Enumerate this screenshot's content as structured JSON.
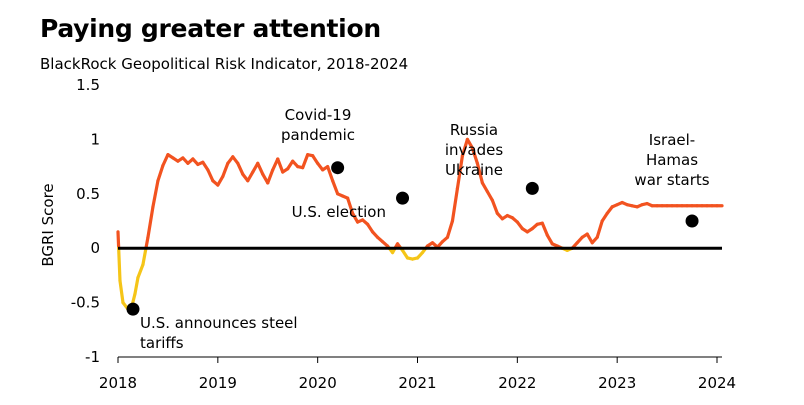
{
  "title": "Paying greater attention",
  "subtitle": "BlackRock Geopolitical Risk Indicator, 2018-2024",
  "colors": {
    "below_zero": "#f5c518",
    "above_zero": "#f25320",
    "zero_line": "#000000",
    "marker": "#000000"
  },
  "chart_data": {
    "type": "line",
    "title": "Paying greater attention",
    "subtitle": "BlackRock Geopolitical Risk Indicator, 2018-2024",
    "xlabel": "",
    "ylabel": "BGRI Score",
    "xlim": [
      2018.0,
      2024.05
    ],
    "ylim": [
      -1,
      1.5
    ],
    "x_ticks": [
      2018,
      2019,
      2020,
      2021,
      2022,
      2023,
      2024
    ],
    "x_tick_labels": [
      "2018",
      "2019",
      "2020",
      "2021",
      "2022",
      "2023",
      "2024"
    ],
    "y_ticks": [
      -1,
      -0.5,
      0,
      0.5,
      1,
      1.5
    ],
    "y_tick_labels": [
      "-1",
      "-0.5",
      "0",
      "0.5",
      "1",
      "1.5"
    ],
    "grid": false,
    "series": [
      {
        "name": "BGRI Score",
        "x": [
          2018.0,
          2018.02,
          2018.05,
          2018.1,
          2018.14,
          2018.17,
          2018.2,
          2018.25,
          2018.3,
          2018.35,
          2018.4,
          2018.45,
          2018.5,
          2018.55,
          2018.6,
          2018.65,
          2018.7,
          2018.75,
          2018.8,
          2018.85,
          2018.9,
          2018.95,
          2019.0,
          2019.05,
          2019.1,
          2019.15,
          2019.2,
          2019.25,
          2019.3,
          2019.35,
          2019.4,
          2019.45,
          2019.5,
          2019.55,
          2019.6,
          2019.65,
          2019.7,
          2019.75,
          2019.8,
          2019.85,
          2019.9,
          2019.95,
          2020.0,
          2020.05,
          2020.1,
          2020.15,
          2020.2,
          2020.25,
          2020.3,
          2020.35,
          2020.4,
          2020.45,
          2020.5,
          2020.55,
          2020.6,
          2020.65,
          2020.7,
          2020.75,
          2020.8,
          2020.85,
          2020.9,
          2020.95,
          2021.0,
          2021.05,
          2021.1,
          2021.15,
          2021.2,
          2021.25,
          2021.3,
          2021.35,
          2021.4,
          2021.45,
          2021.5,
          2021.55,
          2021.6,
          2021.65,
          2021.7,
          2021.75,
          2021.8,
          2021.85,
          2021.9,
          2021.95,
          2022.0,
          2022.05,
          2022.1,
          2022.15,
          2022.2,
          2022.25,
          2022.3,
          2022.35,
          2022.4,
          2022.45,
          2022.5,
          2022.55,
          2022.6,
          2022.65,
          2022.7,
          2022.75,
          2022.8,
          2022.85,
          2022.9,
          2022.95,
          2023.0,
          2023.05,
          2023.1,
          2023.15,
          2023.2,
          2023.25,
          2023.3,
          2023.35,
          2023.4,
          2023.45,
          2023.5,
          2023.55,
          2023.6,
          2023.65,
          2023.7,
          2023.75,
          2023.8,
          2023.85,
          2023.9,
          2023.95,
          2024.0,
          2024.05
        ],
        "y": [
          0.15,
          -0.3,
          -0.5,
          -0.56,
          -0.53,
          -0.42,
          -0.27,
          -0.15,
          0.1,
          0.38,
          0.62,
          0.76,
          0.86,
          0.83,
          0.8,
          0.83,
          0.78,
          0.82,
          0.77,
          0.79,
          0.72,
          0.62,
          0.58,
          0.66,
          0.78,
          0.84,
          0.78,
          0.68,
          0.62,
          0.7,
          0.78,
          0.68,
          0.6,
          0.72,
          0.82,
          0.7,
          0.73,
          0.8,
          0.75,
          0.74,
          0.86,
          0.85,
          0.78,
          0.72,
          0.75,
          0.62,
          0.5,
          0.48,
          0.46,
          0.32,
          0.24,
          0.26,
          0.22,
          0.15,
          0.1,
          0.06,
          0.02,
          -0.04,
          0.04,
          -0.02,
          -0.09,
          -0.1,
          -0.09,
          -0.04,
          0.02,
          0.05,
          0.01,
          0.06,
          0.1,
          0.25,
          0.55,
          0.85,
          1.0,
          0.92,
          0.78,
          0.6,
          0.52,
          0.44,
          0.32,
          0.27,
          0.3,
          0.28,
          0.24,
          0.18,
          0.15,
          0.18,
          0.22,
          0.23,
          0.12,
          0.04,
          0.02,
          0.0,
          -0.02,
          0.0,
          0.05,
          0.1,
          0.13,
          0.05,
          0.1,
          0.25,
          0.32,
          0.38,
          0.4,
          0.42,
          0.4,
          0.39,
          0.38,
          0.4,
          0.41,
          0.39,
          0.39,
          0.39,
          0.39,
          0.39,
          0.39,
          0.39,
          0.39,
          0.39,
          0.39,
          0.39,
          0.39,
          0.39,
          0.39,
          0.39
        ],
        "color_rule": "segments with BGRI below zero drawn yellow, above zero drawn orange-red"
      }
    ],
    "events": [
      {
        "label": [
          "U.S. announces steel",
          "tariffs"
        ],
        "x": 2018.15,
        "y": -0.56
      },
      {
        "label": [
          "Covid-19",
          "pandemic"
        ],
        "x": 2020.2,
        "y": 0.74
      },
      {
        "label": [
          "U.S. election"
        ],
        "x": 2020.85,
        "y": 0.46
      },
      {
        "label": [
          "Russia",
          "invades",
          "Ukraine"
        ],
        "x": 2022.15,
        "y": 0.55
      },
      {
        "label": [
          "Israel-",
          "Hamas",
          "war starts"
        ],
        "x": 2023.75,
        "y": 0.25
      }
    ]
  }
}
